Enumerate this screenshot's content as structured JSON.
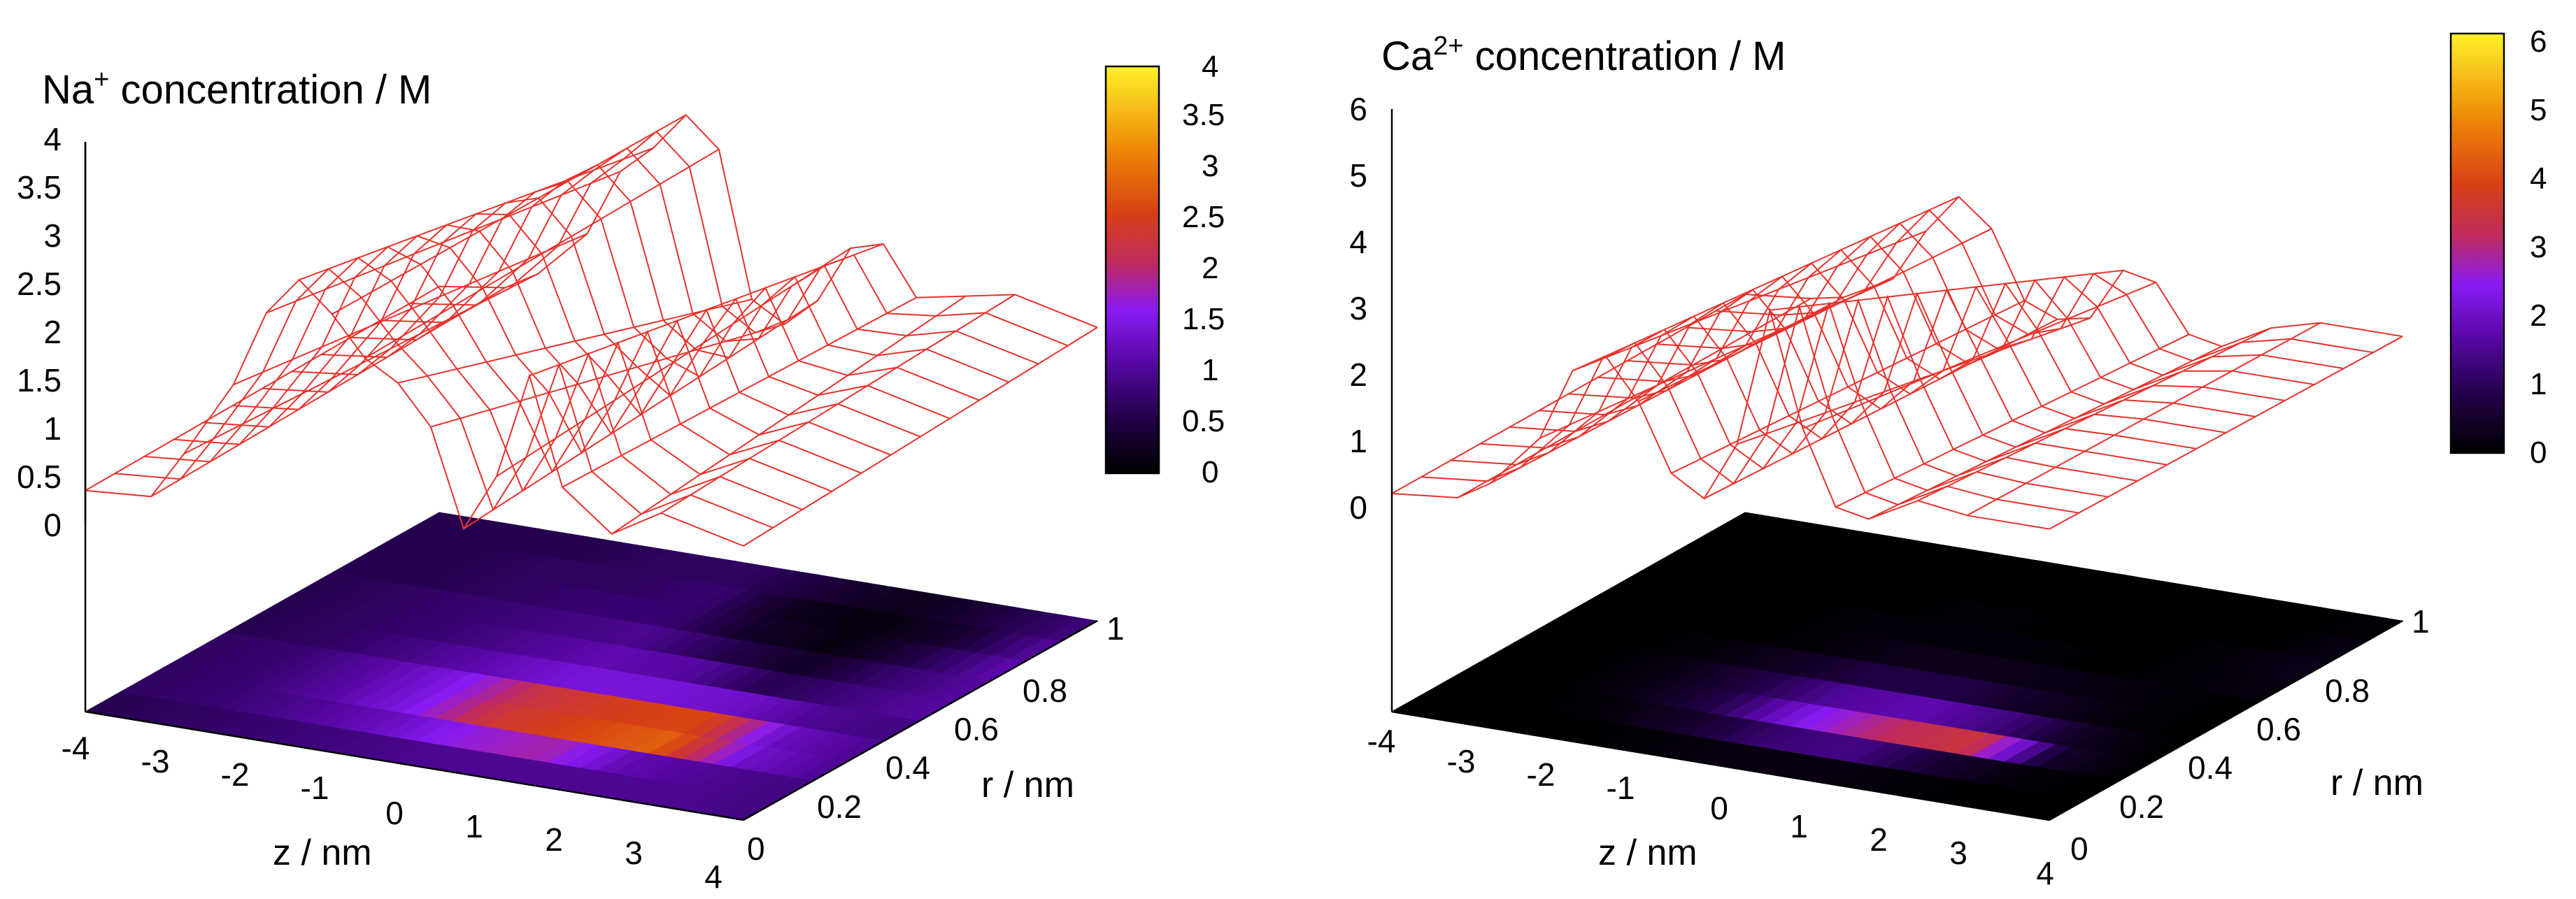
{
  "colors": {
    "wire": "#e8322c",
    "palette": [
      "#000000",
      "#22004a",
      "#5a08a8",
      "#8a1bf4",
      "#c02b5c",
      "#d84014",
      "#ee8a06",
      "#fff22a"
    ]
  },
  "chart_data": [
    {
      "type": "surface3d",
      "title_main": "Na",
      "title_sup": "+",
      "title_rest": " concentration / M",
      "xlabel": "z / nm",
      "ylabel": "r / nm",
      "xlim": [
        -4,
        4
      ],
      "ylim": [
        0,
        1
      ],
      "zlim": [
        0,
        4
      ],
      "x_ticks": [
        "-4",
        "-3",
        "-2",
        "-1",
        "0",
        "1",
        "2",
        "3",
        "4"
      ],
      "y_ticks": [
        "0",
        "0.2",
        "0.4",
        "0.6",
        "0.8",
        "1"
      ],
      "z_ticks": [
        "0",
        "0.5",
        "1",
        "1.5",
        "2",
        "2.5",
        "3",
        "3.5",
        "4"
      ],
      "colorbar_ticks": [
        "0",
        "0.5",
        "1",
        "1.5",
        "2",
        "2.5",
        "3",
        "3.5",
        "4"
      ],
      "colorbar_range": [
        0,
        4
      ],
      "profile_z": [
        -4,
        -3.2,
        -2.8,
        -2.2,
        -1.8,
        -1.4,
        -1.0,
        -0.6,
        -0.2,
        0.2,
        0.6,
        1.0,
        1.4,
        1.8,
        2.4,
        3.0,
        4.0
      ],
      "profile_conc_r0": [
        0.35,
        0.4,
        0.9,
        1.7,
        2.5,
        2.9,
        2.6,
        2.2,
        2.0,
        1.6,
        0.6,
        1.2,
        2.3,
        1.2,
        0.8,
        1.1,
        0.9
      ],
      "profile_conc_r1": [
        0.4,
        0.5,
        0.7,
        1.2,
        1.9,
        2.2,
        2.6,
        2.3,
        0.8,
        0.6,
        0.9,
        1.5,
        1.6,
        1.1,
        1.2,
        1.3,
        1.1
      ],
      "heatmap_rows_r": [
        0.05,
        0.15,
        0.25,
        0.35,
        0.45,
        0.55,
        0.65,
        0.75,
        0.85,
        0.95
      ],
      "heatmap_z": [
        -4,
        -3,
        -2,
        -1,
        0,
        1,
        2,
        3,
        4
      ],
      "heatmap_values": [
        [
          0.6,
          0.7,
          0.8,
          0.9,
          1.0,
          1.0,
          1.0,
          1.0,
          0.9
        ],
        [
          0.7,
          0.8,
          1.0,
          1.3,
          1.8,
          2.0,
          1.2,
          1.0,
          0.9
        ],
        [
          0.7,
          0.8,
          1.1,
          1.6,
          2.6,
          2.9,
          3.1,
          1.4,
          1.0
        ],
        [
          0.7,
          0.8,
          1.1,
          1.6,
          2.5,
          2.8,
          2.9,
          1.3,
          1.0
        ],
        [
          0.6,
          0.7,
          0.9,
          1.2,
          1.5,
          1.5,
          1.4,
          1.0,
          0.9
        ],
        [
          0.6,
          0.7,
          0.8,
          1.0,
          1.2,
          1.1,
          0.6,
          0.9,
          1.1
        ],
        [
          0.6,
          0.7,
          0.8,
          0.9,
          1.0,
          0.6,
          0.3,
          0.8,
          1.1
        ],
        [
          0.6,
          0.6,
          0.7,
          0.8,
          0.8,
          0.3,
          0.1,
          0.6,
          1.2
        ],
        [
          0.6,
          0.6,
          0.7,
          0.7,
          0.8,
          0.2,
          0.1,
          0.4,
          1.1
        ],
        [
          0.6,
          0.6,
          0.6,
          0.7,
          0.7,
          0.4,
          0.2,
          0.5,
          0.9
        ]
      ]
    },
    {
      "type": "surface3d",
      "title_main": "Ca",
      "title_sup": "2+",
      "title_rest": " concentration / M",
      "xlabel": "z / nm",
      "ylabel": "r / nm",
      "xlim": [
        -4,
        4
      ],
      "ylim": [
        0,
        1
      ],
      "zlim": [
        0,
        6
      ],
      "x_ticks": [
        "-4",
        "-3",
        "-2",
        "-1",
        "0",
        "1",
        "2",
        "3",
        "4"
      ],
      "y_ticks": [
        "0",
        "0.2",
        "0.4",
        "0.6",
        "0.8",
        "1"
      ],
      "z_ticks": [
        "0",
        "1",
        "2",
        "3",
        "4",
        "5",
        "6"
      ],
      "colorbar_ticks": [
        "0",
        "1",
        "2",
        "3",
        "4",
        "5",
        "6"
      ],
      "colorbar_range": [
        0,
        6
      ],
      "profile_z": [
        -4,
        -3.2,
        -2.8,
        -2.2,
        -1.8,
        -1.4,
        -1.0,
        -0.6,
        -0.2,
        0.2,
        0.6,
        1.0,
        1.4,
        1.8,
        2.4,
        3.0,
        4.0
      ],
      "profile_conc_r0": [
        0.2,
        0.3,
        0.6,
        1.4,
        2.5,
        2.8,
        2.2,
        1.2,
        0.9,
        1.8,
        3.9,
        2.2,
        1.1,
        1.0,
        1.4,
        1.3,
        1.3
      ],
      "profile_conc_r1": [
        0.2,
        0.3,
        0.4,
        0.8,
        1.6,
        2.2,
        1.8,
        0.8,
        0.6,
        0.7,
        1.5,
        1.4,
        0.7,
        0.6,
        1.0,
        1.2,
        1.2
      ],
      "heatmap_rows_r": [
        0.05,
        0.15,
        0.25,
        0.35,
        0.45,
        0.55,
        0.65,
        0.75,
        0.85,
        0.95
      ],
      "heatmap_z": [
        -4,
        -3,
        -2,
        -1,
        0,
        1,
        2,
        3,
        4
      ],
      "heatmap_values": [
        [
          0.0,
          0.0,
          0.0,
          0.1,
          0.2,
          0.2,
          0.1,
          0.0,
          0.0
        ],
        [
          0.0,
          0.0,
          0.1,
          0.5,
          1.2,
          1.4,
          0.6,
          0.1,
          0.0
        ],
        [
          0.0,
          0.0,
          0.2,
          0.9,
          2.4,
          3.4,
          3.8,
          0.5,
          0.0
        ],
        [
          0.0,
          0.0,
          0.2,
          0.8,
          1.6,
          1.8,
          1.3,
          0.3,
          0.0
        ],
        [
          0.0,
          0.0,
          0.1,
          0.4,
          0.8,
          0.8,
          0.4,
          0.1,
          0.0
        ],
        [
          0.0,
          0.0,
          0.0,
          0.1,
          0.3,
          0.3,
          0.2,
          0.1,
          0.0
        ],
        [
          0.0,
          0.0,
          0.0,
          0.1,
          0.1,
          0.1,
          0.0,
          0.1,
          0.2
        ],
        [
          0.0,
          0.0,
          0.0,
          0.0,
          0.1,
          0.0,
          0.0,
          0.1,
          0.3
        ],
        [
          0.0,
          0.0,
          0.0,
          0.0,
          0.0,
          0.0,
          0.0,
          0.0,
          0.2
        ],
        [
          0.0,
          0.0,
          0.0,
          0.0,
          0.0,
          0.0,
          0.0,
          0.0,
          0.1
        ]
      ]
    }
  ]
}
